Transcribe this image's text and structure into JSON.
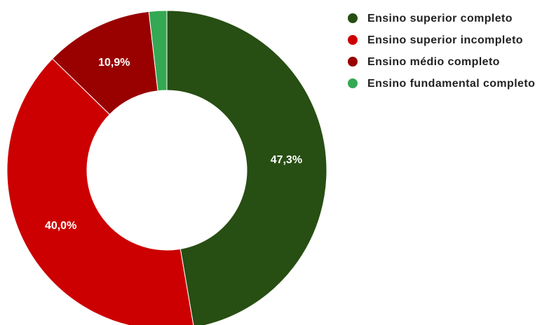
{
  "chart_data": {
    "type": "pie",
    "donut": true,
    "categories": [
      "Ensino superior completo",
      "Ensino superior incompleto",
      "Ensino médio completo",
      "Ensino fundamental completo"
    ],
    "values": [
      47.3,
      40.0,
      10.9,
      1.8
    ],
    "value_labels": [
      "47,3%",
      "40,0%",
      "10,9%",
      ""
    ],
    "colors": [
      "#274e13",
      "#cc0000",
      "#990000",
      "#34a853"
    ],
    "legend_position": "right"
  }
}
